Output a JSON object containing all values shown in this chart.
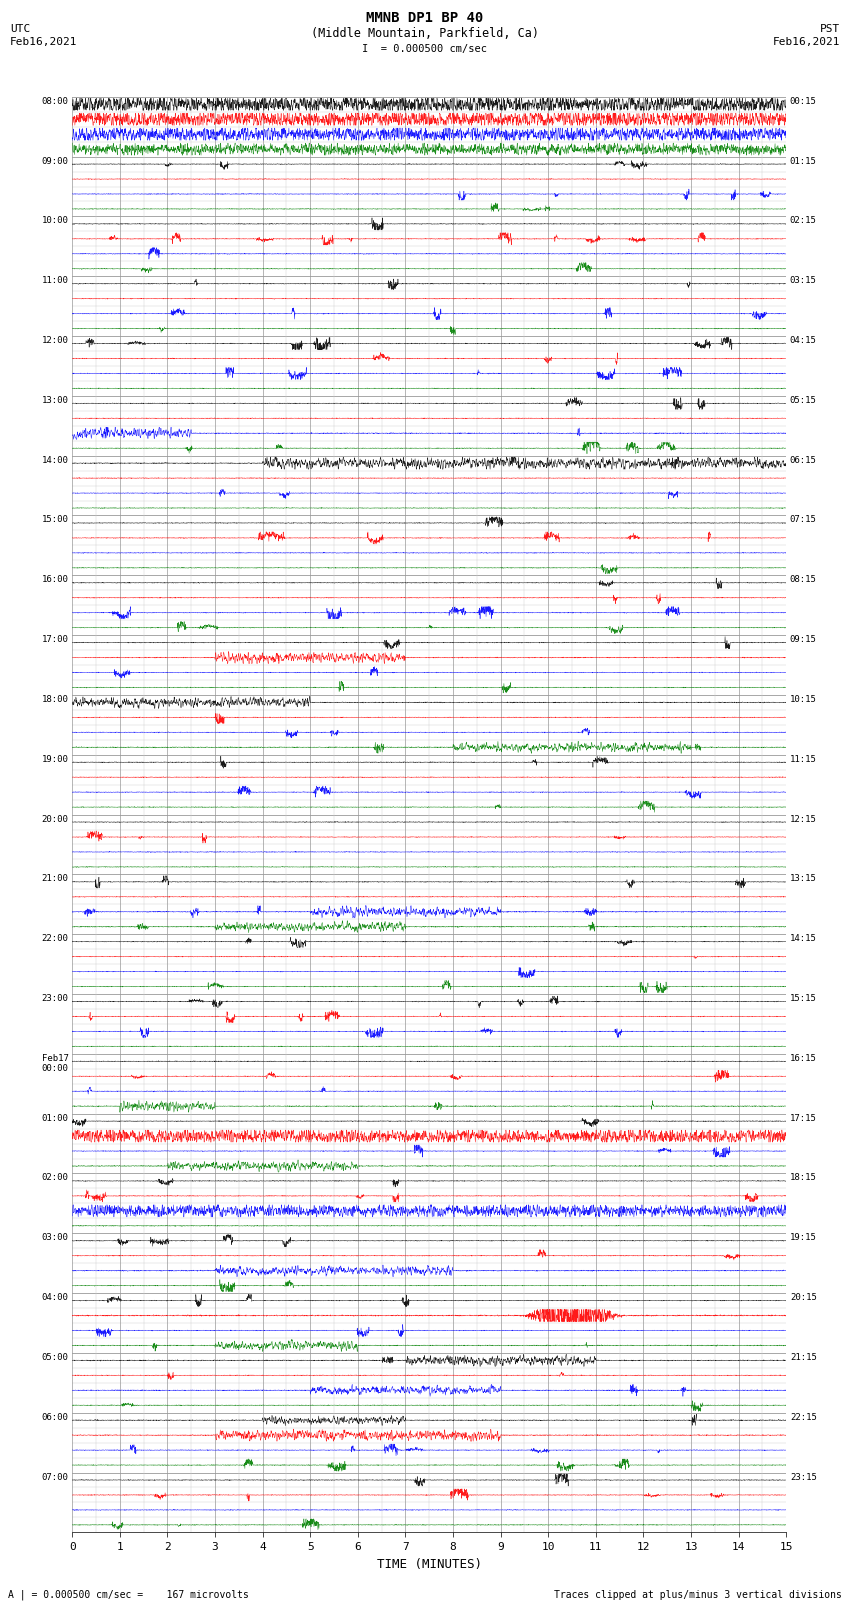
{
  "title_line1": "MMNB DP1 BP 40",
  "title_line2": "(Middle Mountain, Parkfield, Ca)",
  "scale_text": "I  = 0.000500 cm/sec",
  "left_date": "Feb16,2021",
  "right_date": "Feb16,2021",
  "left_tz": "UTC",
  "right_tz": "PST",
  "xlabel": "TIME (MINUTES)",
  "bottom_left": "A | = 0.000500 cm/sec =    167 microvolts",
  "bottom_right": "Traces clipped at plus/minus 3 vertical divisions",
  "left_times": [
    "08:00",
    "09:00",
    "10:00",
    "11:00",
    "12:00",
    "13:00",
    "14:00",
    "15:00",
    "16:00",
    "17:00",
    "18:00",
    "19:00",
    "20:00",
    "21:00",
    "22:00",
    "23:00",
    "Feb17\n00:00",
    "01:00",
    "02:00",
    "03:00",
    "04:00",
    "05:00",
    "06:00",
    "07:00"
  ],
  "right_times": [
    "00:15",
    "01:15",
    "02:15",
    "03:15",
    "04:15",
    "05:15",
    "06:15",
    "07:15",
    "08:15",
    "09:15",
    "10:15",
    "11:15",
    "12:15",
    "13:15",
    "14:15",
    "15:15",
    "16:15",
    "17:15",
    "18:15",
    "19:15",
    "20:15",
    "21:15",
    "22:15",
    "23:15"
  ],
  "bg_color": "#ffffff",
  "trace_colors": [
    "#000000",
    "#ff0000",
    "#0000ff",
    "#008000"
  ],
  "fig_width": 8.5,
  "fig_height": 16.13,
  "dpi": 100,
  "continuous_rows": [
    [
      0,
      0
    ],
    [
      0,
      1
    ],
    [
      0,
      2
    ],
    [
      0,
      3
    ],
    [
      5,
      2
    ],
    [
      6,
      0
    ],
    [
      10,
      3
    ],
    [
      17,
      1
    ],
    [
      18,
      2
    ],
    [
      20,
      1
    ],
    [
      22,
      0
    ]
  ],
  "semi_continuous_rows": [
    [
      9,
      0
    ],
    [
      10,
      0
    ],
    [
      11,
      3
    ],
    [
      13,
      1
    ],
    [
      13,
      2
    ],
    [
      13,
      3
    ],
    [
      16,
      2
    ],
    [
      17,
      0
    ],
    [
      19,
      3
    ],
    [
      20,
      3
    ],
    [
      16,
      0
    ],
    [
      23,
      0
    ]
  ]
}
